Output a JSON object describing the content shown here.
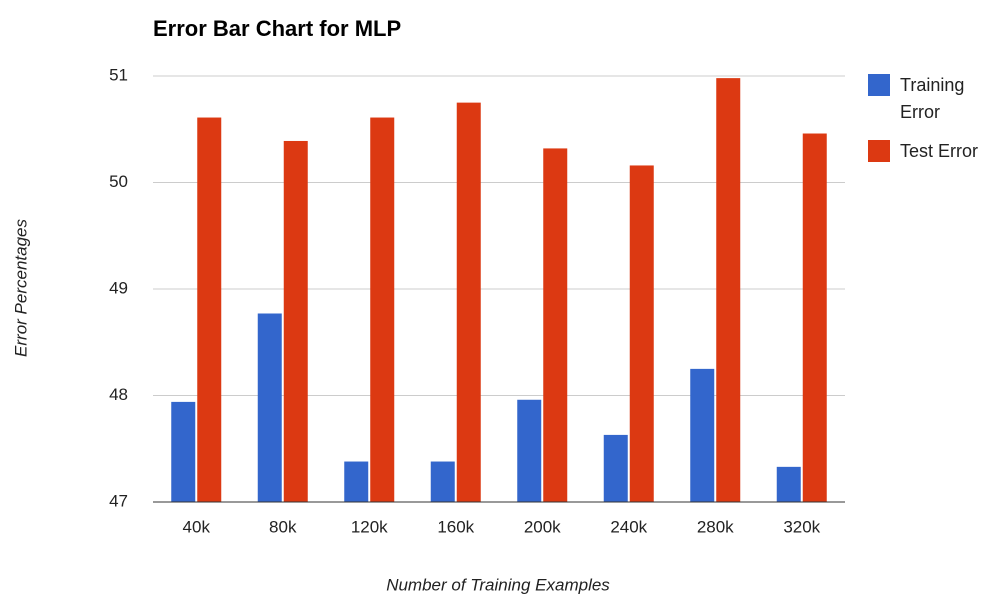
{
  "chart_data": {
    "type": "bar",
    "title": "Error Bar Chart for MLP",
    "xlabel": "Number of Training Examples",
    "ylabel": "Error Percentages",
    "categories": [
      "40k",
      "80k",
      "120k",
      "160k",
      "200k",
      "240k",
      "280k",
      "320k"
    ],
    "series": [
      {
        "name": "Training Error",
        "color": "#3366cc",
        "values": [
          47.94,
          48.77,
          47.38,
          47.38,
          47.96,
          47.63,
          48.25,
          47.33
        ]
      },
      {
        "name": "Test Error",
        "color": "#dc3912",
        "values": [
          50.61,
          50.39,
          50.61,
          50.75,
          50.32,
          50.16,
          50.98,
          50.46
        ]
      }
    ],
    "ylim": [
      47,
      51
    ],
    "yticks": [
      47,
      48,
      49,
      50,
      51
    ],
    "grid": true,
    "legend": "right"
  }
}
